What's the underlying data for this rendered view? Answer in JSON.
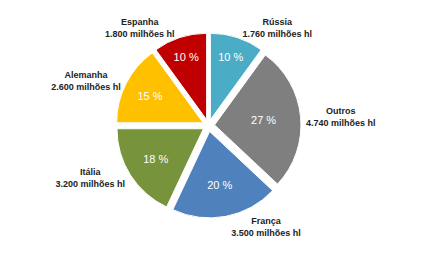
{
  "chart_data": {
    "type": "pie",
    "categories": [
      "Rússia",
      "Outros",
      "França",
      "Itália",
      "Alemanha",
      "Espanha"
    ],
    "values": [
      10,
      27,
      20,
      18,
      15,
      10
    ],
    "value_labels": [
      "10 %",
      "27 %",
      "20 %",
      "18 %",
      "15 %",
      "10 %"
    ],
    "volume_labels": [
      "1.760 milhões hl",
      "4.740 milhões hl",
      "3.500 milhões hl",
      "3.200 milhões hl",
      "2.600 milhões hl",
      "1.800 milhões hl"
    ],
    "colors": [
      "#4bacc6",
      "#7f7f7f",
      "#4f81bd",
      "#77933c",
      "#ffc000",
      "#c00000"
    ],
    "data_labels": true
  }
}
